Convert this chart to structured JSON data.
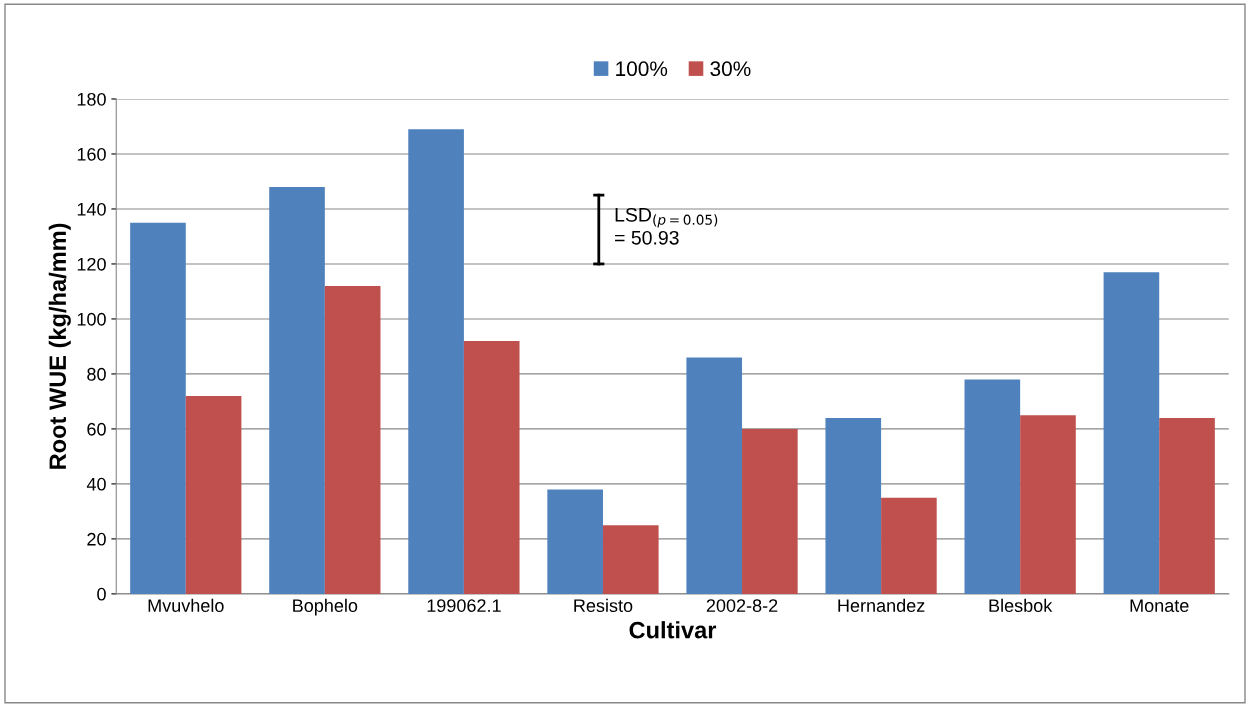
{
  "chart_data": {
    "type": "bar",
    "xlabel": "Cultivar",
    "ylabel": "Root WUE (kg/ha/mm)",
    "categories": [
      "Mvuvhelo",
      "Bophelo",
      "199062.1",
      "Resisto",
      "2002-8-2",
      "Hernandez",
      "Blesbok",
      "Monate"
    ],
    "series": [
      {
        "name": "100%",
        "color": "#4f81bd",
        "values": [
          135,
          148,
          169,
          38,
          86,
          64,
          78,
          117
        ]
      },
      {
        "name": "30%",
        "color": "#c0504d",
        "values": [
          72,
          112,
          92,
          25,
          60,
          35,
          65,
          64
        ]
      }
    ],
    "ylim": [
      0,
      180
    ],
    "yticks": [
      0,
      20,
      40,
      60,
      80,
      100,
      120,
      140,
      160,
      180
    ],
    "grid": "y",
    "legend": "top",
    "annotations": [
      "LSD$_{(p=0.05)}$\n= 50.93"
    ]
  }
}
